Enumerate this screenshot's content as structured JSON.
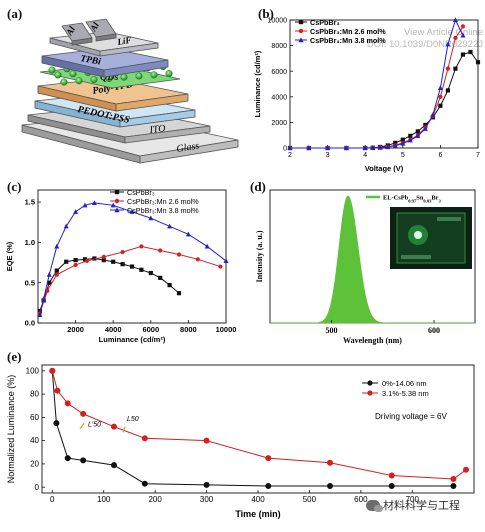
{
  "watermark": {
    "line1": "View Article Online",
    "line2": "DOI: 10.1039/D0NR02922J"
  },
  "wechat": {
    "label": "材料科学与工程"
  },
  "panel_a": {
    "label": "(a)",
    "layers": [
      "Al",
      "LiF",
      "TPBi",
      "QDs",
      "Poly-TPD",
      "PEDOT:PSS",
      "ITO",
      "Glass"
    ],
    "colors": {
      "al": "#9a9aa4",
      "lif": "#c8c8cc",
      "tpbi": "#8a96c8",
      "qd": "#3fc43a",
      "polytpd": "#e7b07b",
      "pedot": "#b8d8ee",
      "ito": "#bfbfbf",
      "glass": "#d6d6d6"
    }
  },
  "panel_b": {
    "label": "(b)",
    "chart_data": {
      "type": "line",
      "xlabel": "Voltage (V)",
      "ylabel": "Luminance (cd/m²)",
      "xlim": [
        2,
        7
      ],
      "ylim": [
        0,
        10000
      ],
      "xticks": [
        2,
        3,
        4,
        5,
        6,
        7
      ],
      "yticks": [
        0,
        2000,
        4000,
        6000,
        8000,
        10000
      ],
      "legend_position": "top-left",
      "series": [
        {
          "name": "CsPbBr₃",
          "color": "#111111",
          "marker": "square",
          "x": [
            2.0,
            2.5,
            3.0,
            3.5,
            4.0,
            4.2,
            4.4,
            4.6,
            4.8,
            5.0,
            5.2,
            5.4,
            5.6,
            5.8,
            6.0,
            6.2,
            6.4,
            6.6,
            6.8,
            7.0
          ],
          "y": [
            0,
            0,
            0,
            0,
            0,
            20,
            80,
            200,
            400,
            650,
            950,
            1300,
            1800,
            2400,
            3300,
            4500,
            6200,
            7300,
            7500,
            6700
          ]
        },
        {
          "name": "CsPbBr₃:Mn 2.6 mol%",
          "color": "#d61f1f",
          "marker": "circle",
          "x": [
            2.0,
            2.5,
            3.0,
            3.5,
            4.0,
            4.2,
            4.4,
            4.6,
            4.8,
            5.0,
            5.2,
            5.4,
            5.6,
            5.8,
            6.0,
            6.2,
            6.4,
            6.6
          ],
          "y": [
            0,
            0,
            0,
            0,
            0,
            10,
            40,
            100,
            220,
            400,
            650,
            1000,
            1600,
            2500,
            4000,
            6200,
            8600,
            9500
          ]
        },
        {
          "name": "CsPbBr₃:Mn 3.8 mol%",
          "color": "#2222c8",
          "marker": "triangle",
          "x": [
            2.0,
            2.5,
            3.0,
            3.5,
            4.0,
            4.2,
            4.4,
            4.6,
            4.8,
            5.0,
            5.2,
            5.4,
            5.6,
            5.8,
            6.0,
            6.2,
            6.4,
            6.6
          ],
          "y": [
            0,
            0,
            0,
            0,
            0,
            10,
            30,
            80,
            180,
            350,
            600,
            950,
            1500,
            2600,
            4700,
            8100,
            10000,
            8800
          ]
        }
      ]
    }
  },
  "panel_c": {
    "label": "(c)",
    "chart_data": {
      "type": "line",
      "xlabel": "Luminance (cd/m²)",
      "ylabel": "EQE (%)",
      "xlim": [
        0,
        10000
      ],
      "ylim": [
        0,
        1.65
      ],
      "xticks": [
        2000,
        4000,
        6000,
        8000,
        10000
      ],
      "yticks": [
        0.0,
        0.5,
        1.0,
        1.5
      ],
      "legend_position": "top-right",
      "series": [
        {
          "name": "CsPbBr₃",
          "color": "#111111",
          "marker": "square",
          "x": [
            100,
            300,
            600,
            1000,
            1500,
            2000,
            2500,
            3000,
            3500,
            4000,
            4500,
            5000,
            5500,
            6000,
            6500,
            7000,
            7500
          ],
          "y": [
            0.15,
            0.28,
            0.5,
            0.65,
            0.76,
            0.78,
            0.79,
            0.8,
            0.78,
            0.76,
            0.73,
            0.7,
            0.66,
            0.62,
            0.56,
            0.47,
            0.37
          ]
        },
        {
          "name": "CsPbBr₃:Mn 2.6 mol%",
          "color": "#d61f1f",
          "marker": "circle",
          "x": [
            100,
            500,
            1000,
            2000,
            2600,
            3500,
            4500,
            5500,
            6500,
            7500,
            8500,
            9700
          ],
          "y": [
            0.12,
            0.4,
            0.6,
            0.72,
            0.77,
            0.82,
            0.88,
            0.95,
            0.9,
            0.85,
            0.79,
            0.7
          ]
        },
        {
          "name": "CsPbBr₃:Mn 3.8 mol%",
          "color": "#2222c8",
          "marker": "triangle",
          "x": [
            100,
            300,
            600,
            1000,
            1500,
            2000,
            2500,
            3000,
            4000,
            5000,
            6000,
            7000,
            8000,
            9000,
            10000
          ],
          "y": [
            0.1,
            0.3,
            0.6,
            0.95,
            1.2,
            1.38,
            1.46,
            1.49,
            1.46,
            1.38,
            1.3,
            1.2,
            1.1,
            0.95,
            0.77
          ]
        }
      ]
    }
  },
  "panel_d": {
    "label": "(d)",
    "chart_data": {
      "type": "area",
      "xlabel": "Wavelength (nm)",
      "ylabel": "Intensity (a. u.)",
      "xlim": [
        440,
        640
      ],
      "xticks": [
        500,
        600
      ],
      "legend": "EL-CsPb0.97Sn0.03Br3",
      "legend_parts": [
        "EL-CsPb",
        "0.97",
        "Sn",
        "0.03",
        "Br",
        "3"
      ],
      "peak_nm": 516,
      "fwhm_nm": 20,
      "color": "#5ec13a"
    }
  },
  "panel_e": {
    "label": "(e)",
    "chart_data": {
      "type": "line",
      "xlabel": "Time (min)",
      "ylabel": "Normalized Luminance (%)",
      "xlim": [
        -20,
        820
      ],
      "ylim": [
        -5,
        105
      ],
      "xticks": [
        0,
        100,
        200,
        300,
        400,
        500,
        600,
        700
      ],
      "yticks": [
        0,
        20,
        40,
        60,
        80,
        100
      ],
      "annotation": "Driving voltage = 6V",
      "legend_position": "top-right",
      "markers_text": {
        "l50_black": "L′50",
        "l50_red": "L50"
      },
      "series": [
        {
          "name": "0%-14.06 nm",
          "color": "#111111",
          "marker": "circle",
          "x": [
            0,
            8,
            30,
            60,
            120,
            180,
            300,
            420,
            540,
            660,
            780
          ],
          "y": [
            100,
            55,
            25,
            23,
            19,
            3,
            2,
            1,
            1,
            1,
            1
          ]
        },
        {
          "name": "3.1%-5.38 nm",
          "color": "#d61f1f",
          "marker": "circle",
          "x": [
            0,
            10,
            30,
            60,
            120,
            180,
            300,
            420,
            540,
            660,
            780
          ],
          "y": [
            100,
            83,
            72,
            63,
            52,
            42,
            40,
            25,
            21,
            10,
            7
          ]
        }
      ],
      "series_extra_last": {
        "name": "3.1%-5.38 nm",
        "x": 860,
        "y": 15
      }
    }
  }
}
